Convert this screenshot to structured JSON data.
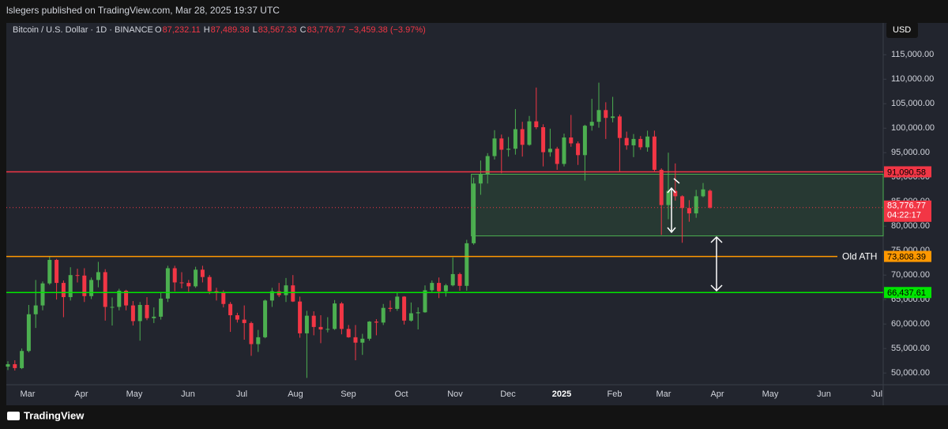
{
  "header": {
    "publisher": "lslegers published on TradingView.com, Mar 28, 2025 19:37 UTC",
    "symbol": "Bitcoin / U.S. Dollar · 1D · BINANCE",
    "ohlc": [
      {
        "key": "O",
        "text": "87,232.11"
      },
      {
        "key": "H",
        "text": "87,489.38"
      },
      {
        "key": "L",
        "text": "83,567.33"
      },
      {
        "key": "C",
        "text": "83,776.77"
      }
    ],
    "change": "−3,459.38 (−3.97%)",
    "currency": "USD",
    "brand": "TradingView"
  },
  "chart_data": {
    "type": "candlestick",
    "ylim": [
      47600,
      121500
    ],
    "yticks": [
      {
        "value": 50000,
        "label": "50,000.00"
      },
      {
        "value": 55000,
        "label": "55,000.00"
      },
      {
        "value": 60000,
        "label": "60,000.00"
      },
      {
        "value": 65000,
        "label": "65,000.00"
      },
      {
        "value": 70000,
        "label": "70,000.00"
      },
      {
        "value": 75000,
        "label": "75,000.00"
      },
      {
        "value": 80000,
        "label": "80,000.00"
      },
      {
        "value": 85000,
        "label": "85,000.00"
      },
      {
        "value": 90000,
        "label": "90,000.00"
      },
      {
        "value": 95000,
        "label": "95,000.00"
      },
      {
        "value": 100000,
        "label": "100,000.00"
      },
      {
        "value": 105000,
        "label": "105,000.00"
      },
      {
        "value": 110000,
        "label": "110,000.00"
      },
      {
        "value": 115000,
        "label": "115,000.00"
      }
    ],
    "months": [
      "Mar",
      "Apr",
      "May",
      "Jun",
      "Jul",
      "Aug",
      "Sep",
      "Oct",
      "Nov",
      "Dec",
      "2025",
      "Feb",
      "Mar",
      "Apr",
      "May",
      "Jun",
      "Jul"
    ],
    "up_color": "#4caf50",
    "down_color": "#f23645",
    "candles": [
      [
        51300,
        52400,
        50600,
        51800
      ],
      [
        51800,
        52600,
        50500,
        51000
      ],
      [
        51000,
        55000,
        50800,
        54500
      ],
      [
        54500,
        63900,
        54200,
        62000
      ],
      [
        62000,
        69000,
        59200,
        63800
      ],
      [
        63800,
        68700,
        62800,
        68300
      ],
      [
        68300,
        73800,
        68000,
        73100
      ],
      [
        73100,
        73300,
        65000,
        68400
      ],
      [
        68400,
        68900,
        61400,
        65500
      ],
      [
        65500,
        71600,
        64800,
        70000
      ],
      [
        70000,
        71300,
        68500,
        69900
      ],
      [
        69900,
        71400,
        64500,
        65700
      ],
      [
        65700,
        69500,
        65100,
        69000
      ],
      [
        69000,
        72700,
        67500,
        70600
      ],
      [
        70600,
        71200,
        60700,
        63500
      ],
      [
        63500,
        65400,
        59700,
        63500
      ],
      [
        63500,
        67200,
        62800,
        66800
      ],
      [
        66800,
        67000,
        62800,
        63800
      ],
      [
        63800,
        64700,
        59700,
        60600
      ],
      [
        60600,
        64500,
        56600,
        63900
      ],
      [
        63900,
        65500,
        60800,
        61200
      ],
      [
        61200,
        63400,
        60200,
        61500
      ],
      [
        61500,
        66500,
        60900,
        65200
      ],
      [
        65200,
        71900,
        64500,
        71400
      ],
      [
        71400,
        71900,
        66700,
        68500
      ],
      [
        68500,
        70600,
        67300,
        68400
      ],
      [
        68400,
        69000,
        66600,
        67700
      ],
      [
        67700,
        71700,
        67400,
        71100
      ],
      [
        71100,
        71900,
        68500,
        69600
      ],
      [
        69600,
        70000,
        66100,
        66700
      ],
      [
        66700,
        67400,
        64800,
        66500
      ],
      [
        66500,
        66900,
        63400,
        64100
      ],
      [
        64100,
        64500,
        58400,
        61800
      ],
      [
        61800,
        62300,
        60300,
        60900
      ],
      [
        60900,
        63800,
        56800,
        60200
      ],
      [
        60200,
        60500,
        53500,
        55900
      ],
      [
        55900,
        58800,
        54300,
        57300
      ],
      [
        57300,
        65000,
        57100,
        64800
      ],
      [
        64800,
        67400,
        63500,
        66700
      ],
      [
        66700,
        68400,
        65500,
        65900
      ],
      [
        65900,
        69400,
        64500,
        67900
      ],
      [
        67900,
        70000,
        64500,
        64600
      ],
      [
        64600,
        65600,
        57200,
        58100
      ],
      [
        58100,
        62700,
        49000,
        61700
      ],
      [
        61700,
        62600,
        57700,
        59400
      ],
      [
        59400,
        61800,
        56100,
        58900
      ],
      [
        58900,
        61400,
        58300,
        59000
      ],
      [
        59000,
        64900,
        58800,
        64200
      ],
      [
        64200,
        64500,
        57900,
        59000
      ],
      [
        59000,
        59800,
        57200,
        57300
      ],
      [
        57300,
        59800,
        52600,
        56200
      ],
      [
        56200,
        58000,
        53700,
        57000
      ],
      [
        57000,
        60600,
        56600,
        60500
      ],
      [
        60500,
        61000,
        57700,
        60300
      ],
      [
        60300,
        64100,
        59800,
        63300
      ],
      [
        63300,
        64800,
        62500,
        63100
      ],
      [
        63100,
        66500,
        62700,
        65600
      ],
      [
        65600,
        65700,
        59900,
        60700
      ],
      [
        60700,
        64400,
        60500,
        62200
      ],
      [
        62200,
        63400,
        58900,
        62400
      ],
      [
        62400,
        67900,
        62300,
        66900
      ],
      [
        66900,
        68900,
        66600,
        68400
      ],
      [
        68400,
        69500,
        65300,
        66700
      ],
      [
        66700,
        68200,
        65600,
        67900
      ],
      [
        67900,
        73600,
        67700,
        70200
      ],
      [
        70200,
        70500,
        66800,
        67800
      ],
      [
        67800,
        77200,
        66800,
        76500
      ],
      [
        76500,
        89900,
        76200,
        88700
      ],
      [
        88700,
        93400,
        86400,
        90600
      ],
      [
        90600,
        94900,
        88700,
        94300
      ],
      [
        94300,
        99600,
        93600,
        97900
      ],
      [
        97900,
        98700,
        90800,
        95600
      ],
      [
        95600,
        98200,
        94200,
        95800
      ],
      [
        95800,
        103900,
        94600,
        99800
      ],
      [
        99800,
        101300,
        94200,
        96600
      ],
      [
        96600,
        102500,
        96400,
        101400
      ],
      [
        101400,
        108300,
        99800,
        100200
      ],
      [
        100200,
        100800,
        92200,
        95100
      ],
      [
        95100,
        99900,
        94200,
        95800
      ],
      [
        95800,
        96200,
        91500,
        92700
      ],
      [
        92700,
        98900,
        92200,
        98100
      ],
      [
        98100,
        102700,
        96200,
        96900
      ],
      [
        96900,
        97300,
        92500,
        94500
      ],
      [
        94500,
        100700,
        89300,
        100500
      ],
      [
        100500,
        106000,
        99500,
        101300
      ],
      [
        101300,
        109300,
        100100,
        103700
      ],
      [
        103700,
        105300,
        97800,
        102100
      ],
      [
        102100,
        106400,
        101200,
        102400
      ],
      [
        102400,
        102800,
        91200,
        98000
      ],
      [
        98000,
        99300,
        95600,
        96500
      ],
      [
        96500,
        98800,
        94100,
        97800
      ],
      [
        97800,
        98400,
        95600,
        96100
      ],
      [
        96100,
        99500,
        95200,
        98300
      ],
      [
        98300,
        99500,
        91200,
        91500
      ],
      [
        91500,
        91800,
        78200,
        84300
      ],
      [
        84300,
        95000,
        81400,
        87200
      ],
      [
        87200,
        92800,
        85200,
        86100
      ],
      [
        86100,
        86300,
        76600,
        83700
      ],
      [
        83700,
        85300,
        80900,
        82600
      ],
      [
        82600,
        87400,
        81700,
        86100
      ],
      [
        86100,
        88800,
        85900,
        87500
      ],
      [
        87232.11,
        87489.38,
        83567.33,
        83776.77
      ]
    ],
    "zone": {
      "start": 67,
      "range": [
        78000,
        90600
      ],
      "color": "#4caf50"
    },
    "levels": [
      {
        "value": 91090.58,
        "label": "91,090.58",
        "color": "#f23645"
      },
      {
        "value": 73808.39,
        "label": "73,808.39",
        "color": "#ff9800",
        "annotation": "Old ATH"
      },
      {
        "value": 66437.61,
        "label": "66,437.61",
        "color": "#00e600"
      }
    ],
    "last_price": {
      "value": 83776.77,
      "label": "83,776.77",
      "countdown": "04:22:17",
      "color": "#f23645"
    }
  }
}
